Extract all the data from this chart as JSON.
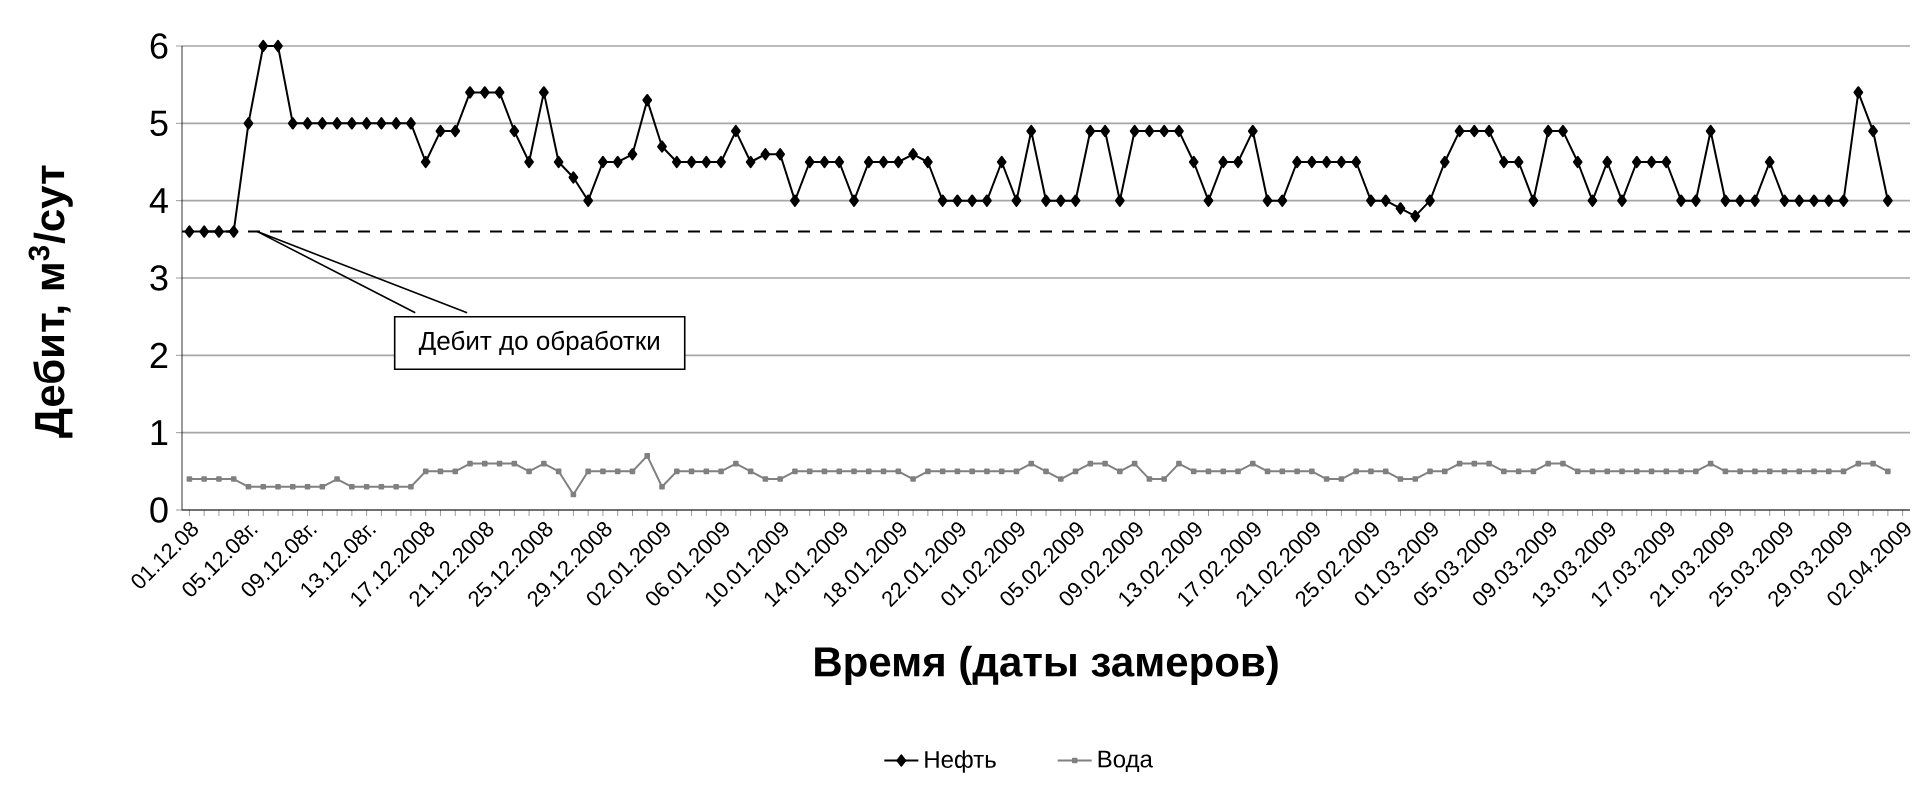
{
  "chart_data": {
    "type": "line",
    "xlabel": "Время (даты замеров)",
    "ylabel": "Дебит, м$^{3}$/сут",
    "categories": [
      "01.12.08",
      null,
      null,
      null,
      "05.12.08г.",
      null,
      null,
      null,
      "09.12.08г.",
      null,
      null,
      null,
      "13.12.08г.",
      null,
      null,
      null,
      "17.12.2008",
      null,
      null,
      null,
      "21.12.2008",
      null,
      null,
      null,
      "25.12.2008",
      null,
      null,
      null,
      "29.12.2008",
      null,
      null,
      null,
      "02.01.2009",
      null,
      null,
      null,
      "06.01.2009",
      null,
      null,
      null,
      "10.01.2009",
      null,
      null,
      null,
      "14.01.2009",
      null,
      null,
      null,
      "18.01.2009",
      null,
      null,
      null,
      "22.01.2009",
      null,
      null,
      null,
      "01.02.2009",
      null,
      null,
      null,
      "05.02.2009",
      null,
      null,
      null,
      "09.02.2009",
      null,
      null,
      null,
      "13.02.2009",
      null,
      null,
      null,
      "17.02.2009",
      null,
      null,
      null,
      "21.02.2009",
      null,
      null,
      null,
      "25.02.2009",
      null,
      null,
      null,
      "01.03.2009",
      null,
      null,
      null,
      "05.03.2009",
      null,
      null,
      null,
      "09.03.2009",
      null,
      null,
      null,
      "13.03.2009",
      null,
      null,
      null,
      "17.03.2009",
      null,
      null,
      null,
      "21.03.2009",
      null,
      null,
      null,
      "25.03.2009",
      null,
      null,
      null,
      "29.03.2009",
      null,
      null,
      null,
      "02.04.2009"
    ],
    "series": [
      {
        "name": "Нефть",
        "color": "#000000",
        "marker": "diamond",
        "values": [
          3.6,
          3.6,
          3.6,
          3.6,
          5,
          6,
          6,
          5,
          5,
          5,
          5,
          5,
          5,
          5,
          5,
          5,
          4.5,
          4.9,
          4.9,
          5.4,
          5.4,
          5.4,
          4.9,
          4.5,
          5.4,
          4.5,
          4.3,
          4.0,
          4.5,
          4.5,
          4.6,
          5.3,
          4.7,
          4.5,
          4.5,
          4.5,
          4.5,
          4.9,
          4.5,
          4.6,
          4.6,
          4.0,
          4.5,
          4.5,
          4.5,
          4.0,
          4.5,
          4.5,
          4.5,
          4.6,
          4.5,
          4.0,
          4.0,
          4.0,
          4.0,
          4.5,
          4.0,
          4.9,
          4.0,
          4.0,
          4.0,
          4.9,
          4.9,
          4.0,
          4.9,
          4.9,
          4.9,
          4.9,
          4.5,
          4.0,
          4.5,
          4.5,
          4.9,
          4.0,
          4.0,
          4.5,
          4.5,
          4.5,
          4.5,
          4.5,
          4.0,
          4.0,
          3.9,
          3.8,
          4.0,
          4.5,
          4.9,
          4.9,
          4.9,
          4.5,
          4.5,
          4.0,
          4.9,
          4.9,
          4.5,
          4.0,
          4.5,
          4.0,
          4.5,
          4.5,
          4.5,
          4.0,
          4.0,
          4.9,
          4.0,
          4.0,
          4.0,
          4.5,
          4.0,
          4.0,
          4.0,
          4.0,
          4.0,
          5.4,
          4.9,
          4.0,
          null
        ]
      },
      {
        "name": "Вода",
        "color": "#808080",
        "marker": "square",
        "values": [
          0.4,
          0.4,
          0.4,
          0.4,
          0.3,
          0.3,
          0.3,
          0.3,
          0.3,
          0.3,
          0.4,
          0.3,
          0.3,
          0.3,
          0.3,
          0.3,
          0.5,
          0.5,
          0.5,
          0.6,
          0.6,
          0.6,
          0.6,
          0.5,
          0.6,
          0.5,
          0.2,
          0.5,
          0.5,
          0.5,
          0.5,
          0.7,
          0.3,
          0.5,
          0.5,
          0.5,
          0.5,
          0.6,
          0.5,
          0.4,
          0.4,
          0.5,
          0.5,
          0.5,
          0.5,
          0.5,
          0.5,
          0.5,
          0.5,
          0.4,
          0.5,
          0.5,
          0.5,
          0.5,
          0.5,
          0.5,
          0.5,
          0.6,
          0.5,
          0.4,
          0.5,
          0.6,
          0.6,
          0.5,
          0.6,
          0.4,
          0.4,
          0.6,
          0.5,
          0.5,
          0.5,
          0.5,
          0.6,
          0.5,
          0.5,
          0.5,
          0.5,
          0.4,
          0.4,
          0.5,
          0.5,
          0.5,
          0.4,
          0.4,
          0.5,
          0.5,
          0.6,
          0.6,
          0.6,
          0.5,
          0.5,
          0.5,
          0.6,
          0.6,
          0.5,
          0.5,
          0.5,
          0.5,
          0.5,
          0.5,
          0.5,
          0.5,
          0.5,
          0.6,
          0.5,
          0.5,
          0.5,
          0.5,
          0.5,
          0.5,
          0.5,
          0.5,
          0.5,
          0.6,
          0.6,
          0.5,
          null
        ]
      }
    ],
    "ylim": [
      0,
      6
    ],
    "yticks": [
      0,
      1,
      2,
      3,
      4,
      5,
      6
    ],
    "grid": "y",
    "legend": "bottom",
    "line_style": "solid",
    "ref_lines": [
      {
        "axis": "y",
        "value": 3.6,
        "color": "#000000",
        "line_style": "dashed"
      }
    ],
    "annotations": [
      "Дебит до обработки"
    ]
  }
}
